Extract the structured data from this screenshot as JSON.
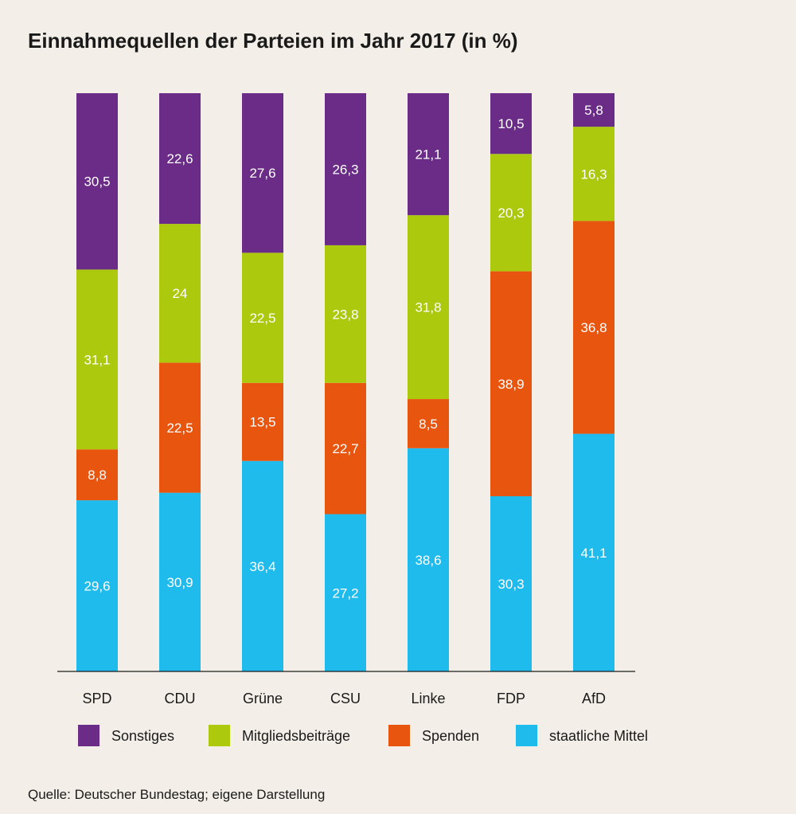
{
  "chart_data": {
    "type": "bar",
    "stacked": true,
    "title": "Einnahmequellen der Parteien im Jahr 2017 (in %)",
    "categories": [
      "SPD",
      "CDU",
      "Grüne",
      "CSU",
      "Linke",
      "FDP",
      "AfD"
    ],
    "series": [
      {
        "name": "staatliche Mittel",
        "color": "#1fbbec",
        "values": [
          29.6,
          30.9,
          36.4,
          27.2,
          38.6,
          30.3,
          41.1
        ],
        "labels": [
          "29,6",
          "30,9",
          "36,4",
          "27,2",
          "38,6",
          "30,3",
          "41,1"
        ]
      },
      {
        "name": "Spenden",
        "color": "#e8550e",
        "values": [
          8.8,
          22.5,
          13.5,
          22.7,
          8.5,
          38.9,
          36.8
        ],
        "labels": [
          "8,8",
          "22,5",
          "13,5",
          "22,7",
          "8,5",
          "38,9",
          "36,8"
        ]
      },
      {
        "name": "Mitgliedsbeiträge",
        "color": "#adc90d",
        "values": [
          31.1,
          24,
          22.5,
          23.8,
          31.8,
          20.3,
          16.3
        ],
        "labels": [
          "31,1",
          "24",
          "22,5",
          "23,8",
          "31,8",
          "20,3",
          "16,3"
        ]
      },
      {
        "name": "Sonstiges",
        "color": "#6a2c86",
        "values": [
          30.5,
          22.6,
          27.6,
          26.3,
          21.1,
          10.5,
          5.8
        ],
        "labels": [
          "30,5",
          "22,6",
          "27,6",
          "26,3",
          "21,1",
          "10,5",
          "5,8"
        ]
      }
    ],
    "legend_order": [
      "Sonstiges",
      "Mitgliedsbeiträge",
      "Spenden",
      "staatliche Mittel"
    ],
    "ylim": [
      0,
      100
    ],
    "grid": false,
    "legend_placement": "bottom"
  },
  "source": "Quelle: Deutscher Bundestag; eigene Darstellung"
}
